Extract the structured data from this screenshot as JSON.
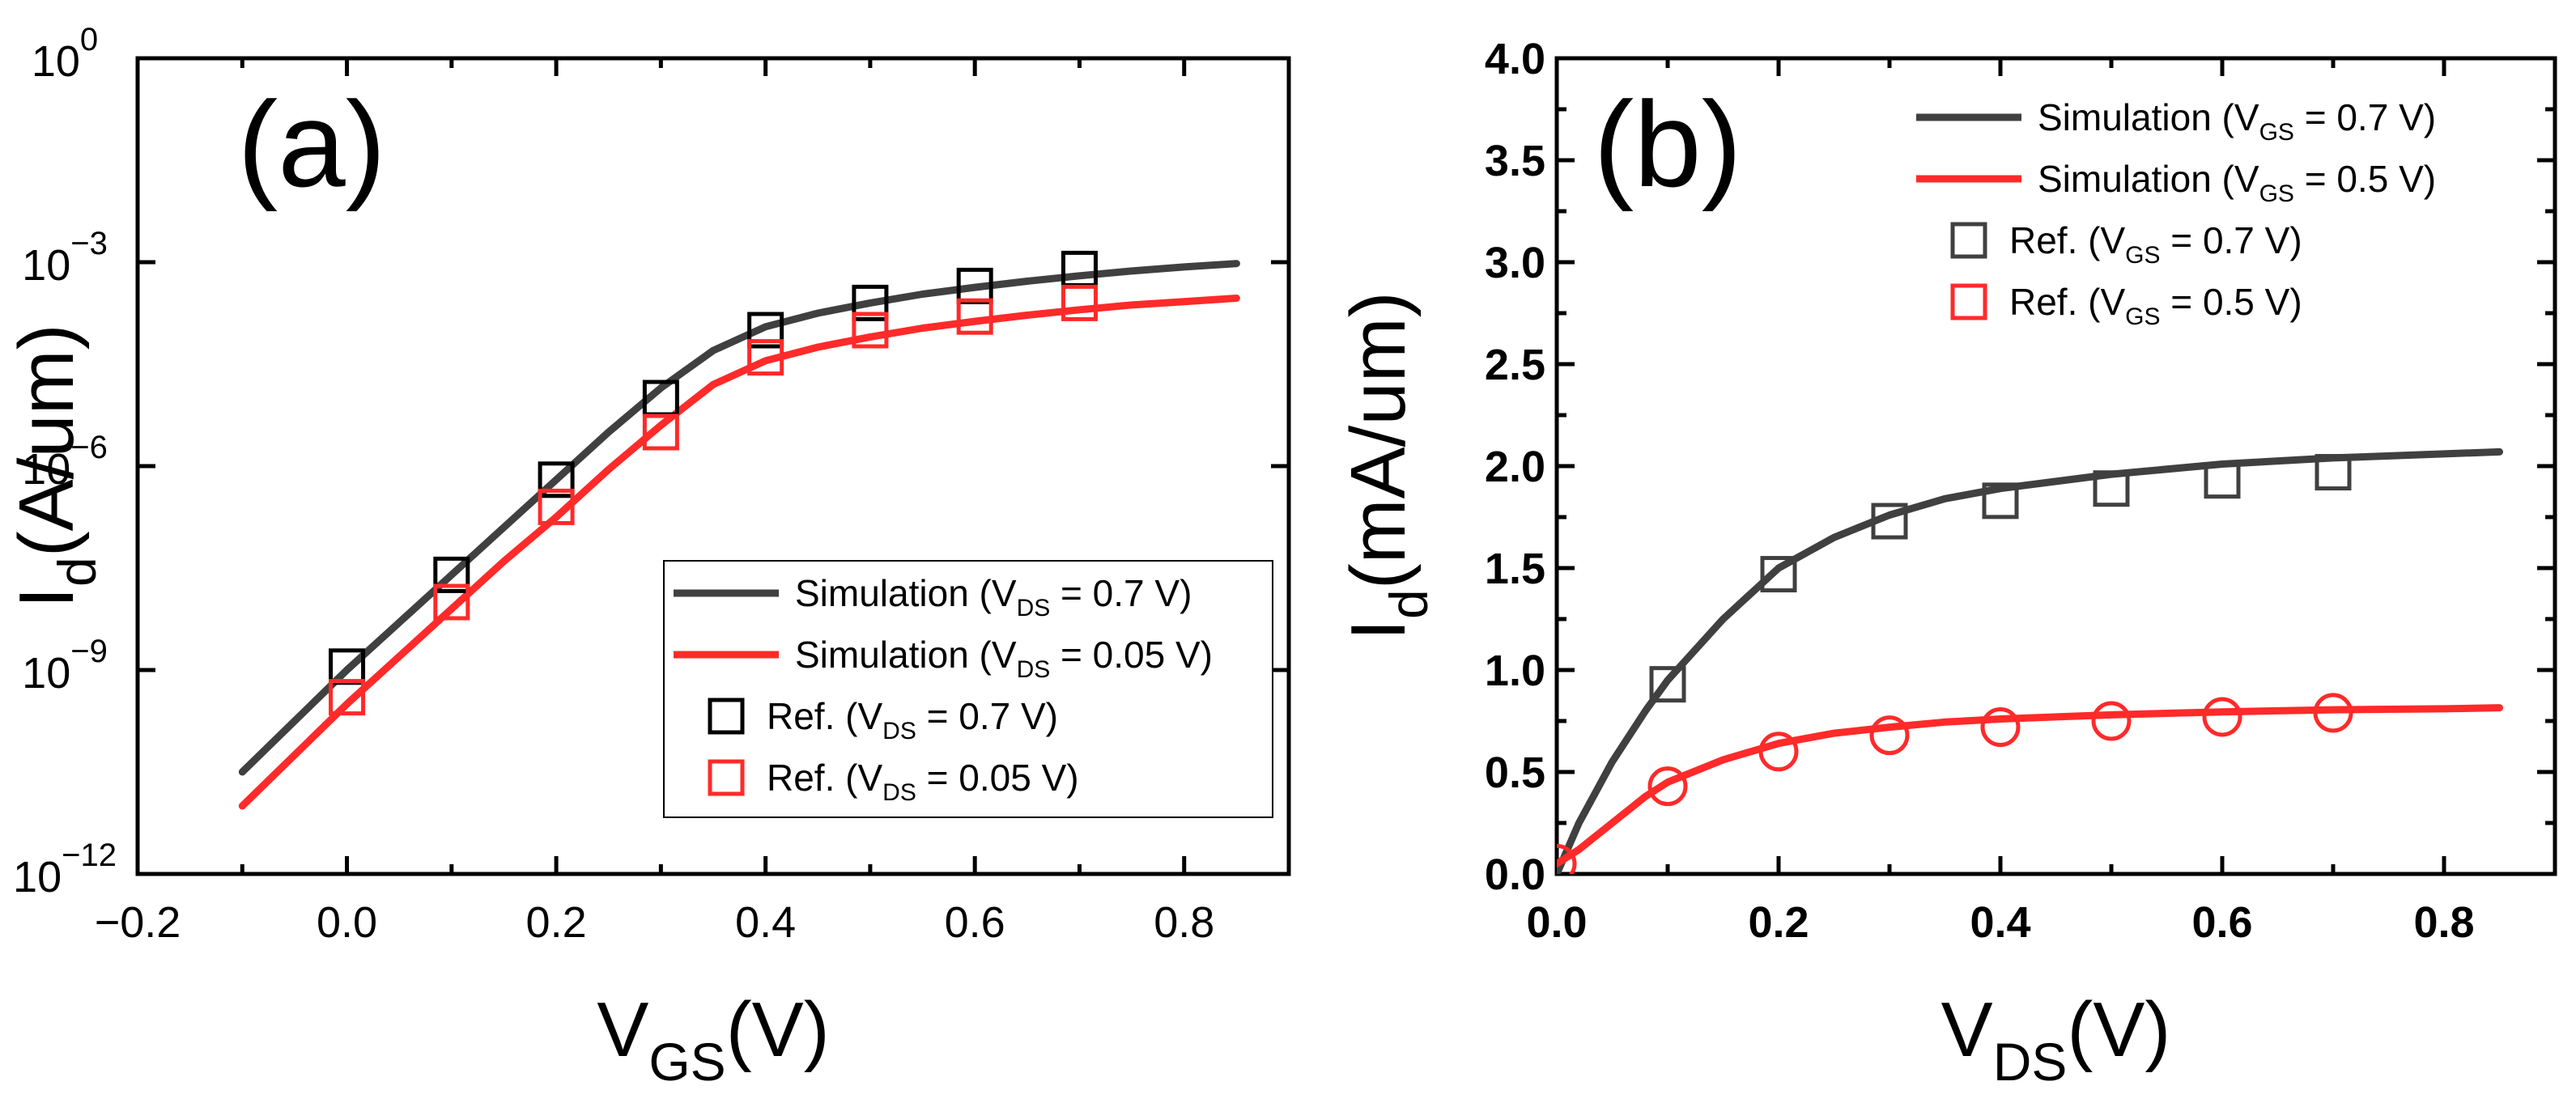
{
  "chart_data": [
    {
      "type": "line",
      "panel_label": "(a)",
      "xlabel": {
        "main": "V",
        "sub": "GS",
        "unit": "(V)"
      },
      "ylabel": {
        "main": "I",
        "sub": "d",
        "unit": "(A/um)"
      },
      "xlim": [
        -0.2,
        0.9
      ],
      "ylim_log10": [
        -12,
        0
      ],
      "yscale": "log",
      "x_ticks": [
        -0.2,
        0.0,
        0.2,
        0.4,
        0.6,
        0.8
      ],
      "x_tick_labels": [
        "−0.2",
        "0.0",
        "0.2",
        "0.4",
        "0.6",
        "0.8"
      ],
      "y_ticks_log10": [
        -12,
        -9,
        -6,
        -3,
        0
      ],
      "y_tick_labels": [
        {
          "base": "10",
          "exp": "−12"
        },
        {
          "base": "10",
          "exp": "−9"
        },
        {
          "base": "10",
          "exp": "−6"
        },
        {
          "base": "10",
          "exp": "−3"
        },
        {
          "base": "10",
          "exp": "0"
        }
      ],
      "legend_position": "lower-right",
      "series": [
        {
          "name": "Simulation (VDS = 0.7 V)",
          "kind": "line",
          "color": "#404040",
          "legend": {
            "pre": "Simulation (V",
            "sub": "DS",
            "post": " = 0.7 V)"
          },
          "x": [
            -0.1,
            0.0,
            0.05,
            0.1,
            0.15,
            0.2,
            0.25,
            0.3,
            0.35,
            0.4,
            0.45,
            0.5,
            0.55,
            0.6,
            0.65,
            0.7,
            0.75,
            0.8,
            0.85
          ],
          "y_log10": [
            -10.5,
            -9.0,
            -8.3,
            -7.6,
            -6.9,
            -6.2,
            -5.5,
            -4.85,
            -4.3,
            -3.95,
            -3.75,
            -3.6,
            -3.47,
            -3.37,
            -3.28,
            -3.2,
            -3.13,
            -3.07,
            -3.02
          ]
        },
        {
          "name": "Simulation (VDS = 0.05 V)",
          "kind": "line",
          "color": "#ff2a2a",
          "legend": {
            "pre": "Simulation (V",
            "sub": "DS",
            "post": " = 0.05 V)"
          },
          "x": [
            -0.1,
            0.0,
            0.05,
            0.1,
            0.15,
            0.2,
            0.25,
            0.3,
            0.35,
            0.4,
            0.45,
            0.5,
            0.55,
            0.6,
            0.65,
            0.7,
            0.75,
            0.8,
            0.85
          ],
          "y_log10": [
            -11.0,
            -9.5,
            -8.8,
            -8.1,
            -7.4,
            -6.75,
            -6.05,
            -5.4,
            -4.8,
            -4.45,
            -4.25,
            -4.1,
            -3.97,
            -3.87,
            -3.78,
            -3.7,
            -3.63,
            -3.58,
            -3.53
          ]
        },
        {
          "name": "Ref. (VDS = 0.7 V)",
          "kind": "square",
          "color": "#000000",
          "legend": {
            "pre": "Ref. (V",
            "sub": "DS",
            "post": " =  0.7 V)"
          },
          "x": [
            0.0,
            0.1,
            0.2,
            0.3,
            0.4,
            0.5,
            0.6,
            0.7
          ],
          "y_log10": [
            -8.95,
            -7.6,
            -6.2,
            -5.0,
            -4.0,
            -3.6,
            -3.35,
            -3.1
          ]
        },
        {
          "name": "Ref. (VDS = 0.05 V)",
          "kind": "square",
          "color": "#ff2a2a",
          "legend": {
            "pre": "Ref. (V",
            "sub": "DS",
            "post": " =  0.05 V)"
          },
          "x": [
            0.0,
            0.1,
            0.2,
            0.3,
            0.4,
            0.5,
            0.6,
            0.7
          ],
          "y_log10": [
            -9.4,
            -8.0,
            -6.6,
            -5.5,
            -4.4,
            -4.0,
            -3.8,
            -3.6
          ]
        }
      ]
    },
    {
      "type": "line",
      "panel_label": "(b)",
      "xlabel": {
        "main": "V",
        "sub": "DS",
        "unit": "(V)"
      },
      "ylabel": {
        "main": "I",
        "sub": "d",
        "unit": "(mA/um)"
      },
      "xlim": [
        0.0,
        0.9
      ],
      "ylim": [
        0.0,
        4.0
      ],
      "yscale": "linear",
      "x_ticks": [
        0.0,
        0.2,
        0.4,
        0.6,
        0.8
      ],
      "x_tick_labels": [
        "0.0",
        "0.2",
        "0.4",
        "0.6",
        "0.8"
      ],
      "y_ticks": [
        0.0,
        0.5,
        1.0,
        1.5,
        2.0,
        2.5,
        3.0,
        3.5,
        4.0
      ],
      "y_tick_labels": [
        "0.0",
        "0.5",
        "1.0",
        "1.5",
        "2.0",
        "2.5",
        "3.0",
        "3.5",
        "4.0"
      ],
      "legend_position": "top-right",
      "series": [
        {
          "name": "Simulation (VGS = 0.7 V)",
          "kind": "line",
          "color": "#404040",
          "legend": {
            "pre": "Simulation (V",
            "sub": "GS",
            "post": " = 0.7 V)"
          },
          "x": [
            0.0,
            0.02,
            0.05,
            0.08,
            0.1,
            0.15,
            0.2,
            0.25,
            0.3,
            0.35,
            0.4,
            0.5,
            0.6,
            0.7,
            0.8,
            0.85
          ],
          "y": [
            0.0,
            0.25,
            0.55,
            0.8,
            0.95,
            1.25,
            1.5,
            1.65,
            1.76,
            1.84,
            1.89,
            1.96,
            2.01,
            2.04,
            2.06,
            2.07
          ]
        },
        {
          "name": "Simulation (VGS = 0.5 V)",
          "kind": "line",
          "color": "#ff2a2a",
          "legend": {
            "pre": "Simulation (V",
            "sub": "GS",
            "post": " = 0.5 V)"
          },
          "x": [
            0.0,
            0.02,
            0.05,
            0.08,
            0.1,
            0.15,
            0.2,
            0.25,
            0.3,
            0.35,
            0.4,
            0.5,
            0.6,
            0.7,
            0.8,
            0.85
          ],
          "y": [
            0.05,
            0.12,
            0.25,
            0.38,
            0.45,
            0.56,
            0.64,
            0.69,
            0.72,
            0.745,
            0.76,
            0.78,
            0.795,
            0.805,
            0.81,
            0.815
          ]
        },
        {
          "name": "Ref. (VGS = 0.7 V)",
          "kind": "square",
          "color": "#404040",
          "legend": {
            "pre": "Ref. (V",
            "sub": "GS",
            "post": " =  0.7 V)"
          },
          "x": [
            0.1,
            0.2,
            0.3,
            0.4,
            0.5,
            0.6,
            0.7
          ],
          "y": [
            0.93,
            1.47,
            1.73,
            1.83,
            1.89,
            1.93,
            1.97
          ]
        },
        {
          "name": "Ref. (VGS = 0.5 V)",
          "kind": "circle",
          "color": "#ff2a2a",
          "legend": {
            "pre": "Ref. (V",
            "sub": "GS",
            "post": " =  0.5 V)"
          },
          "x": [
            0.0,
            0.1,
            0.2,
            0.3,
            0.4,
            0.5,
            0.6,
            0.7
          ],
          "y": [
            0.05,
            0.43,
            0.6,
            0.68,
            0.72,
            0.75,
            0.77,
            0.79
          ]
        }
      ]
    }
  ]
}
